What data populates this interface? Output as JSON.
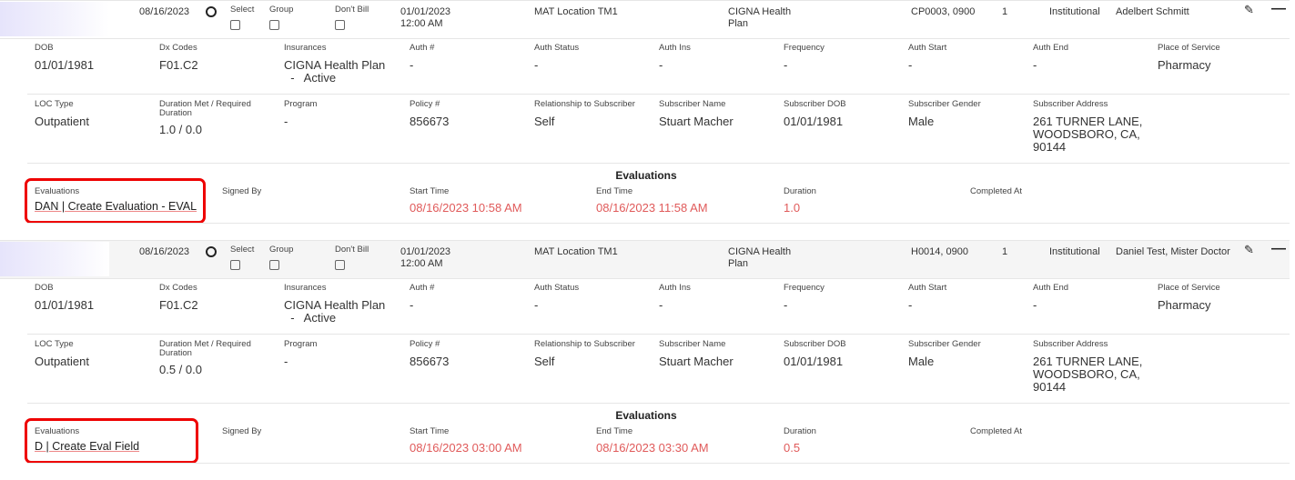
{
  "rows": [
    {
      "date": "08/16/2023",
      "select_label": "Select",
      "group_label": "Group",
      "dont_bill_label": "Don't Bill",
      "start": "01/01/2023",
      "start_time": "12:00 AM",
      "location": "MAT Location TM1",
      "insurance_l1": "CIGNA Health",
      "insurance_l2": "Plan",
      "codes": "CP0003, 0900",
      "units": "1",
      "type": "Institutional",
      "provider": "Adelbert Schmitt",
      "details1": [
        {
          "label": "DOB",
          "value": "01/01/1981"
        },
        {
          "label": "Dx Codes",
          "value": "F01.C2"
        },
        {
          "label": "Insurances",
          "value": "CIGNA Health Plan",
          "value2": "  -   Active"
        },
        {
          "label": "Auth #",
          "value": "-"
        },
        {
          "label": "Auth Status",
          "value": "-"
        },
        {
          "label": "Auth Ins",
          "value": "-"
        },
        {
          "label": "Frequency",
          "value": "-"
        },
        {
          "label": "Auth Start",
          "value": "-"
        },
        {
          "label": "Auth End",
          "value": "-"
        },
        {
          "label": "Place of Service",
          "value": "Pharmacy"
        }
      ],
      "details2": [
        {
          "label": "LOC Type",
          "value": "Outpatient"
        },
        {
          "label": "Duration Met / Required",
          "label2": "Duration",
          "value": "1.0 / 0.0"
        },
        {
          "label": "Program",
          "value": "-"
        },
        {
          "label": "Policy #",
          "value": "856673"
        },
        {
          "label": "Relationship to Subscriber",
          "value": "Self"
        },
        {
          "label": "Subscriber Name",
          "value": "Stuart Macher"
        },
        {
          "label": "Subscriber DOB",
          "value": "01/01/1981"
        },
        {
          "label": "Subscriber Gender",
          "value": "Male"
        },
        {
          "label": "Subscriber Address",
          "value": "261 TURNER LANE,",
          "value2": "WOODSBORO, CA,",
          "value3": "90144"
        }
      ],
      "evaluations": {
        "title": "Evaluations",
        "labels": [
          "Evaluations",
          "Signed By",
          "Start Time",
          "End Time",
          "Duration",
          "Completed At"
        ],
        "link": "DAN | Create Evaluation - EVAL",
        "signed_by": "",
        "start_time": "08/16/2023 10:58 AM",
        "end_time": "08/16/2023 11:58 AM",
        "duration": "1.0",
        "completed_at": ""
      }
    },
    {
      "date": "08/16/2023",
      "select_label": "Select",
      "group_label": "Group",
      "dont_bill_label": "Don't Bill",
      "start": "01/01/2023",
      "start_time": "12:00 AM",
      "location": "MAT Location TM1",
      "insurance_l1": "CIGNA Health",
      "insurance_l2": "Plan",
      "codes": "H0014, 0900",
      "units": "1",
      "type": "Institutional",
      "provider": "Daniel Test, Mister Doctor",
      "details1": [
        {
          "label": "DOB",
          "value": "01/01/1981"
        },
        {
          "label": "Dx Codes",
          "value": "F01.C2"
        },
        {
          "label": "Insurances",
          "value": "CIGNA Health Plan",
          "value2": "  -   Active"
        },
        {
          "label": "Auth #",
          "value": "-"
        },
        {
          "label": "Auth Status",
          "value": "-"
        },
        {
          "label": "Auth Ins",
          "value": "-"
        },
        {
          "label": "Frequency",
          "value": "-"
        },
        {
          "label": "Auth Start",
          "value": "-"
        },
        {
          "label": "Auth End",
          "value": "-"
        },
        {
          "label": "Place of Service",
          "value": "Pharmacy"
        }
      ],
      "details2": [
        {
          "label": "LOC Type",
          "value": "Outpatient"
        },
        {
          "label": "Duration Met / Required",
          "label2": "Duration",
          "value": "0.5 / 0.0"
        },
        {
          "label": "Program",
          "value": "-"
        },
        {
          "label": "Policy #",
          "value": "856673"
        },
        {
          "label": "Relationship to Subscriber",
          "value": "Self"
        },
        {
          "label": "Subscriber Name",
          "value": "Stuart Macher"
        },
        {
          "label": "Subscriber DOB",
          "value": "01/01/1981"
        },
        {
          "label": "Subscriber Gender",
          "value": "Male"
        },
        {
          "label": "Subscriber Address",
          "value": "261 TURNER LANE,",
          "value2": "WOODSBORO, CA,",
          "value3": "90144"
        }
      ],
      "evaluations": {
        "title": "Evaluations",
        "labels": [
          "Evaluations",
          "Signed By",
          "Start Time",
          "End Time",
          "Duration",
          "Completed At"
        ],
        "link": "D | Create Eval Field",
        "signed_by": "",
        "start_time": "08/16/2023 03:00 AM",
        "end_time": "08/16/2023 03:30 AM",
        "duration": "0.5",
        "completed_at": ""
      }
    }
  ],
  "icons": {
    "edit": "pencil-icon",
    "collapse": "minus-icon"
  },
  "colors": {
    "time_red": "#e05a5a",
    "highlight": "#e00000",
    "row_header_bg": "#f5f5f5"
  }
}
